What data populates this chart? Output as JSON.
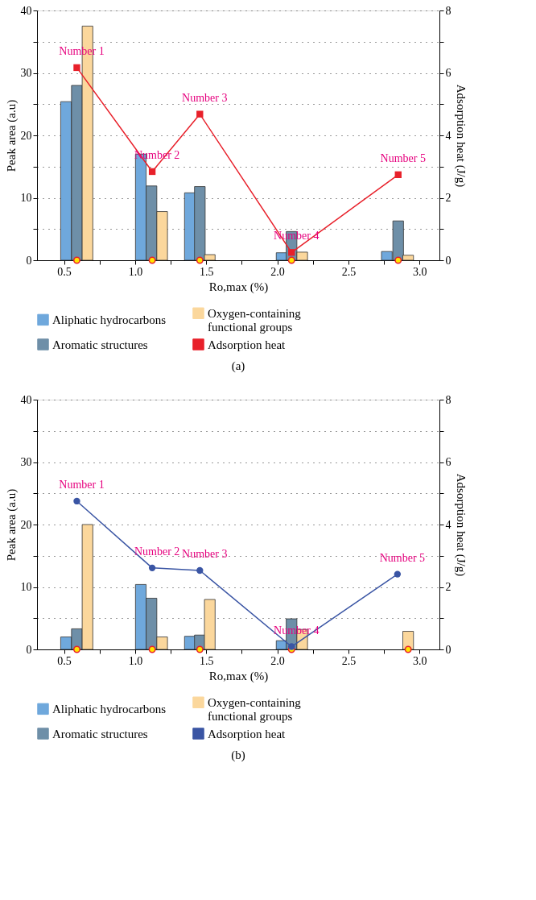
{
  "chart_data": [
    {
      "type": "bar",
      "xlabel": "Ro,max (%)",
      "ylabel": "Peak area (a.u)",
      "y2label": "Adsorption heat (J/g)",
      "xlim": [
        0.31,
        3.14
      ],
      "xticks": [
        {
          "value": 0.5,
          "label": "0.5"
        },
        {
          "value": 0.75,
          "label": null
        },
        {
          "value": 1.0,
          "label": "1.0"
        },
        {
          "value": 1.25,
          "label": null
        },
        {
          "value": 1.5,
          "label": "1.5"
        },
        {
          "value": 1.75,
          "label": null
        },
        {
          "value": 2.0,
          "label": "2.0"
        },
        {
          "value": 2.25,
          "label": null
        },
        {
          "value": 2.5,
          "label": "2.5"
        },
        {
          "value": 2.75,
          "label": null
        },
        {
          "value": 3.0,
          "label": "3.0"
        }
      ],
      "ylim": [
        0,
        40
      ],
      "yticks": [
        0,
        {
          "value": 5,
          "label": null
        },
        10,
        {
          "value": 15,
          "label": null
        },
        20,
        {
          "value": 25,
          "label": null
        },
        30,
        {
          "value": 35,
          "label": null
        },
        40
      ],
      "y2lim": [
        0,
        8
      ],
      "y2ticks": [
        0,
        {
          "value": 1,
          "label": null
        },
        2,
        {
          "value": 3,
          "label": null
        },
        4,
        {
          "value": 5,
          "label": null
        },
        6,
        {
          "value": 7,
          "label": null
        },
        8
      ],
      "grid": "y",
      "legend": "bottom",
      "series": [
        {
          "name": "Aliphatic hydrocarbons",
          "color": "#6fa8dc",
          "x": [
            0.514,
            1.04,
            1.385,
            2.03,
            2.77
          ],
          "values": [
            25.4,
            17.0,
            10.8,
            1.2,
            1.4
          ]
        },
        {
          "name": "Aromatic structures",
          "color": "#6e8fa8",
          "x": [
            0.59,
            1.115,
            1.455,
            2.1,
            2.85
          ],
          "values": [
            28.0,
            11.9,
            11.8,
            4.6,
            6.3
          ]
        },
        {
          "name": "Oxygen-containing functional groups",
          "color": "#fbd79c",
          "x": [
            0.665,
            1.19,
            1.525,
            2.175,
            2.92
          ],
          "values": [
            37.5,
            7.8,
            0.9,
            1.3,
            0.8
          ]
        },
        {
          "name": "Adsorption heat",
          "type": "line",
          "axis": "y2",
          "marker": "square",
          "color": "#e8202a",
          "x": [
            0.59,
            1.12,
            1.455,
            2.1,
            2.85
          ],
          "values": [
            6.17,
            2.84,
            4.68,
            0.25,
            2.74
          ]
        },
        {
          "type": "scatter",
          "marker": "circle",
          "color": "#ffe600",
          "x": [
            0.59,
            1.12,
            1.455,
            2.1,
            2.85
          ],
          "values": [
            0,
            0,
            0,
            0,
            0
          ]
        }
      ],
      "annotations": [
        "Number 1",
        "Number 2",
        "Number 3",
        "Number 4",
        "Number 5",
        "(a)"
      ]
    },
    {
      "type": "bar",
      "xlabel": "Ro,max (%)",
      "ylabel": "Peak area (a.u)",
      "y2label": "Adsorption heat (J/g)",
      "xlim": [
        0.31,
        3.14
      ],
      "xticks": [
        {
          "value": 0.5,
          "label": "0.5"
        },
        {
          "value": 0.75,
          "label": null
        },
        {
          "value": 1.0,
          "label": "1.0"
        },
        {
          "value": 1.25,
          "label": null
        },
        {
          "value": 1.5,
          "label": "1.5"
        },
        {
          "value": 1.75,
          "label": null
        },
        {
          "value": 2.0,
          "label": "2.0"
        },
        {
          "value": 2.25,
          "label": null
        },
        {
          "value": 2.5,
          "label": "2.5"
        },
        {
          "value": 2.75,
          "label": null
        },
        {
          "value": 3.0,
          "label": "3.0"
        }
      ],
      "ylim": [
        0,
        40
      ],
      "yticks": [
        0,
        {
          "value": 5,
          "label": null
        },
        10,
        {
          "value": 15,
          "label": null
        },
        20,
        {
          "value": 25,
          "label": null
        },
        30,
        {
          "value": 35,
          "label": null
        },
        40
      ],
      "y2lim": [
        0,
        8
      ],
      "y2ticks": [
        0,
        {
          "value": 1,
          "label": null
        },
        2,
        {
          "value": 3,
          "label": null
        },
        4,
        {
          "value": 5,
          "label": null
        },
        6,
        {
          "value": 7,
          "label": null
        },
        8
      ],
      "grid": "y",
      "legend": "bottom",
      "series": [
        {
          "name": "Aliphatic hydrocarbons",
          "color": "#6fa8dc",
          "x": [
            0.514,
            1.04,
            1.385,
            2.03,
            null
          ],
          "values": [
            2.0,
            10.4,
            2.1,
            1.4,
            null
          ]
        },
        {
          "name": "Aromatic structures",
          "color": "#6e8fa8",
          "x": [
            0.59,
            1.115,
            1.455,
            2.1,
            null
          ],
          "values": [
            3.3,
            8.2,
            2.3,
            4.9,
            null
          ]
        },
        {
          "name": "Oxygen-containing functional groups",
          "color": "#fbd79c",
          "x": [
            0.665,
            1.19,
            1.525,
            2.175,
            2.92
          ],
          "values": [
            20.0,
            2.0,
            8.0,
            3.2,
            2.9
          ]
        },
        {
          "name": "Adsorption heat",
          "type": "line",
          "axis": "y2",
          "marker": "circle",
          "color": "#3a55a4",
          "x": [
            0.59,
            1.12,
            1.455,
            2.1,
            2.845
          ],
          "values": [
            4.75,
            2.61,
            2.53,
            0.09,
            2.41
          ]
        },
        {
          "type": "scatter",
          "marker": "circle",
          "color": "#ffe600",
          "x": [
            0.59,
            1.12,
            1.455,
            2.1,
            2.92
          ],
          "values": [
            0,
            0,
            0,
            0,
            0
          ]
        }
      ],
      "annotations": [
        "Number 1",
        "Number 2",
        "Number 3",
        "Number 4",
        "Number 5",
        "(b)"
      ]
    }
  ]
}
